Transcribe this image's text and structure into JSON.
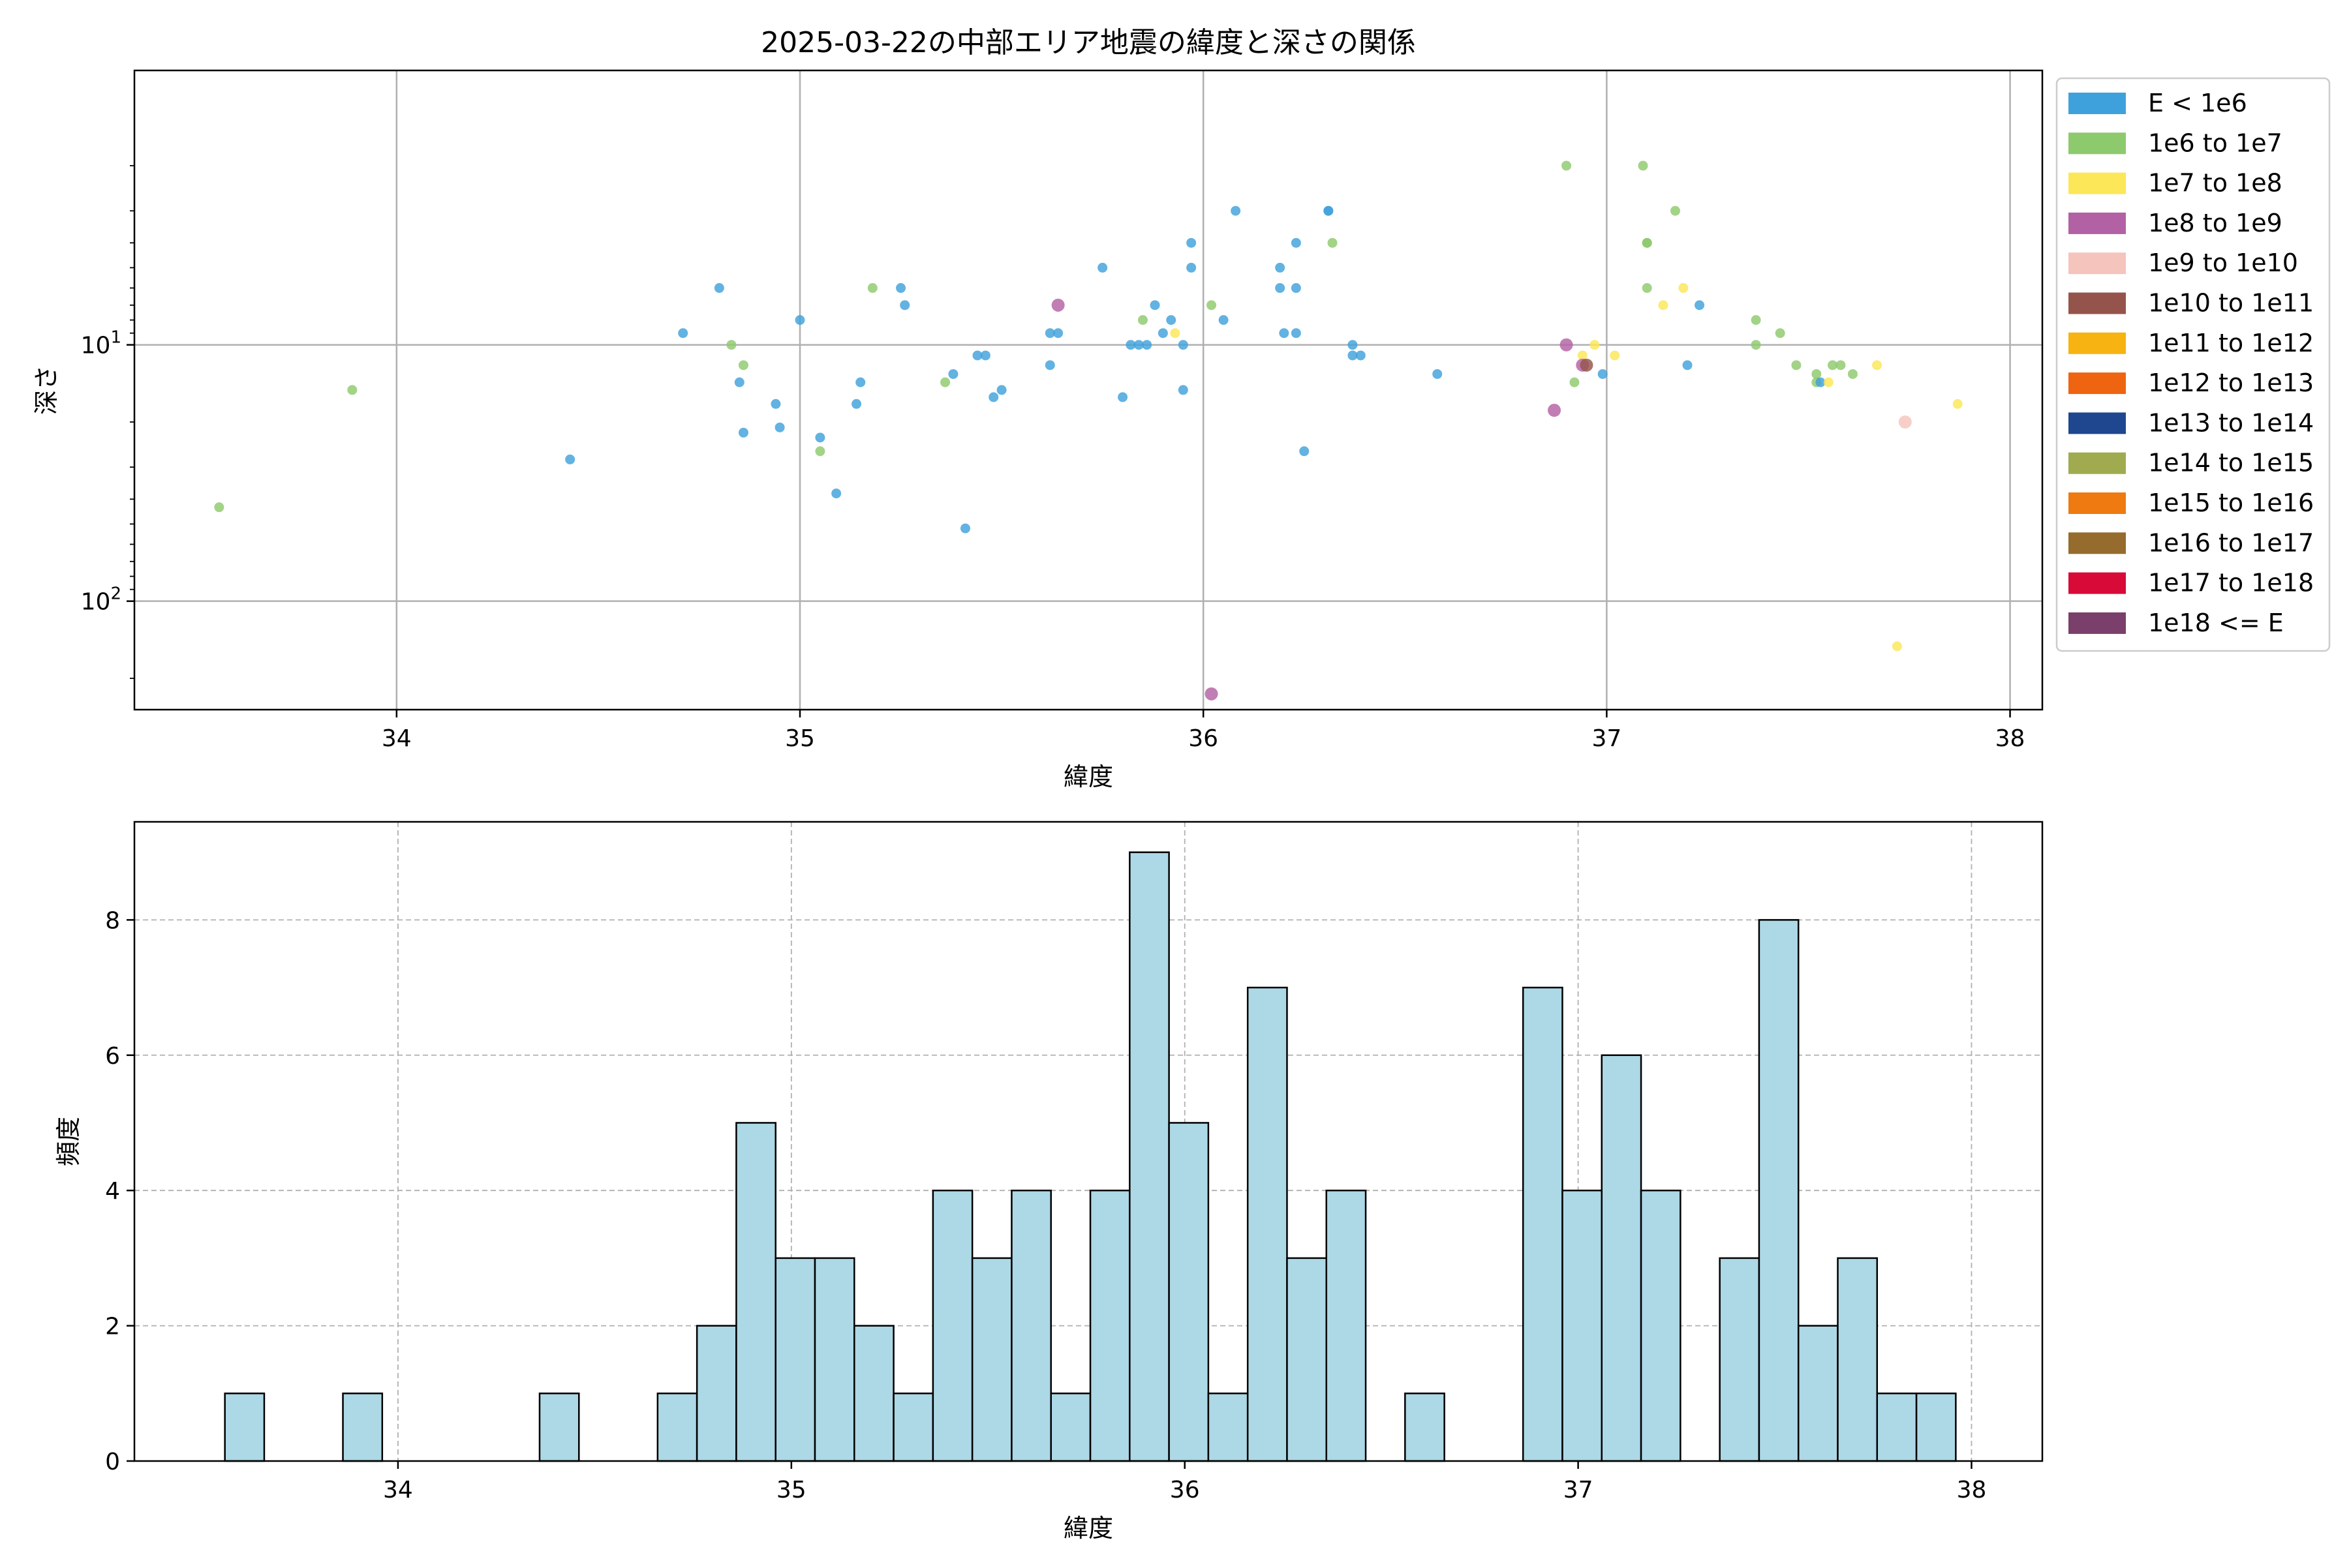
{
  "colors": {
    "hist_fill": "#add8e6",
    "hist_edge": "#000000",
    "grid": "#b0b0b0",
    "energy_classes": [
      "#3fa1dc",
      "#8dc96d",
      "#fbe757",
      "#b261a4",
      "#f5c4bd",
      "#95544b",
      "#f6b311",
      "#ee6410",
      "#1e4790",
      "#9fab4e",
      "#ee7a11",
      "#956b2e",
      "#d80b38",
      "#7a3f6b"
    ]
  },
  "chart_data": [
    {
      "type": "scatter",
      "title": "2025-03-22の中部エリア地震の緯度と深さの関係",
      "xlabel": "緯度",
      "ylabel": "深さ",
      "xlim": [
        33.35,
        38.08
      ],
      "ylim": [
        265,
        0.85
      ],
      "yscale": "log",
      "y_inverted": true,
      "grid": true,
      "xticks": [
        34,
        35,
        36,
        37,
        38
      ],
      "yticks": [
        {
          "value": 10,
          "base": "10",
          "exp": "1"
        },
        {
          "value": 100,
          "base": "10",
          "exp": "2"
        }
      ],
      "legend": {
        "position": "right-outside",
        "entries": [
          "E < 1e6",
          "1e6 to 1e7",
          "1e7 to 1e8",
          "1e8 to 1e9",
          "1e9 to 1e10",
          "1e10 to 1e11",
          "1e11 to 1e12",
          "1e12 to 1e13",
          "1e13 to 1e14",
          "1e14 to 1e15",
          "1e15 to 1e16",
          "1e16 to 1e17",
          "1e17 to 1e18",
          "1e18 <= E"
        ]
      },
      "points": [
        {
          "x": 33.56,
          "y": 43,
          "c": 1
        },
        {
          "x": 33.89,
          "y": 15,
          "c": 1
        },
        {
          "x": 34.43,
          "y": 28,
          "c": 0
        },
        {
          "x": 34.71,
          "y": 9,
          "c": 0
        },
        {
          "x": 34.8,
          "y": 6,
          "c": 0
        },
        {
          "x": 34.83,
          "y": 10,
          "c": 1
        },
        {
          "x": 34.85,
          "y": 14,
          "c": 0
        },
        {
          "x": 34.86,
          "y": 22,
          "c": 0
        },
        {
          "x": 34.86,
          "y": 12,
          "c": 1
        },
        {
          "x": 34.94,
          "y": 17,
          "c": 0
        },
        {
          "x": 34.95,
          "y": 21,
          "c": 0
        },
        {
          "x": 35.0,
          "y": 8,
          "c": 0
        },
        {
          "x": 35.05,
          "y": 23,
          "c": 0
        },
        {
          "x": 35.05,
          "y": 26,
          "c": 1
        },
        {
          "x": 35.09,
          "y": 38,
          "c": 0
        },
        {
          "x": 35.14,
          "y": 17,
          "c": 0
        },
        {
          "x": 35.15,
          "y": 14,
          "c": 0
        },
        {
          "x": 35.18,
          "y": 6,
          "c": 1
        },
        {
          "x": 35.25,
          "y": 6,
          "c": 0
        },
        {
          "x": 35.26,
          "y": 7,
          "c": 0
        },
        {
          "x": 35.36,
          "y": 14,
          "c": 1
        },
        {
          "x": 35.38,
          "y": 13,
          "c": 0
        },
        {
          "x": 35.41,
          "y": 52,
          "c": 0
        },
        {
          "x": 35.44,
          "y": 11,
          "c": 0
        },
        {
          "x": 35.46,
          "y": 11,
          "c": 0
        },
        {
          "x": 35.48,
          "y": 16,
          "c": 0
        },
        {
          "x": 35.5,
          "y": 15,
          "c": 0
        },
        {
          "x": 35.62,
          "y": 12,
          "c": 0
        },
        {
          "x": 35.62,
          "y": 9,
          "c": 0
        },
        {
          "x": 35.64,
          "y": 9,
          "c": 0
        },
        {
          "x": 35.64,
          "y": 7,
          "c": 3
        },
        {
          "x": 35.75,
          "y": 5,
          "c": 0
        },
        {
          "x": 35.8,
          "y": 16,
          "c": 0
        },
        {
          "x": 35.82,
          "y": 10,
          "c": 0
        },
        {
          "x": 35.84,
          "y": 10,
          "c": 0
        },
        {
          "x": 35.85,
          "y": 8,
          "c": 1
        },
        {
          "x": 35.86,
          "y": 10,
          "c": 0
        },
        {
          "x": 35.88,
          "y": 7,
          "c": 0
        },
        {
          "x": 35.9,
          "y": 9,
          "c": 0
        },
        {
          "x": 35.92,
          "y": 8,
          "c": 0
        },
        {
          "x": 35.93,
          "y": 9,
          "c": 2
        },
        {
          "x": 35.95,
          "y": 10,
          "c": 0
        },
        {
          "x": 35.95,
          "y": 15,
          "c": 0
        },
        {
          "x": 35.97,
          "y": 4,
          "c": 0
        },
        {
          "x": 35.97,
          "y": 5,
          "c": 0
        },
        {
          "x": 36.02,
          "y": 7,
          "c": 1
        },
        {
          "x": 36.02,
          "y": 230,
          "c": 3
        },
        {
          "x": 36.05,
          "y": 8,
          "c": 0
        },
        {
          "x": 36.08,
          "y": 3,
          "c": 0
        },
        {
          "x": 36.19,
          "y": 5,
          "c": 0
        },
        {
          "x": 36.19,
          "y": 6,
          "c": 0
        },
        {
          "x": 36.2,
          "y": 9,
          "c": 0
        },
        {
          "x": 36.23,
          "y": 4,
          "c": 0
        },
        {
          "x": 36.23,
          "y": 6,
          "c": 0
        },
        {
          "x": 36.23,
          "y": 9,
          "c": 0
        },
        {
          "x": 36.25,
          "y": 26,
          "c": 0
        },
        {
          "x": 36.31,
          "y": 3,
          "c": 0
        },
        {
          "x": 36.31,
          "y": 3,
          "c": 0
        },
        {
          "x": 36.32,
          "y": 4,
          "c": 1
        },
        {
          "x": 36.37,
          "y": 10,
          "c": 0
        },
        {
          "x": 36.37,
          "y": 11,
          "c": 0
        },
        {
          "x": 36.39,
          "y": 11,
          "c": 0
        },
        {
          "x": 36.58,
          "y": 13,
          "c": 0
        },
        {
          "x": 36.87,
          "y": 18,
          "c": 3
        },
        {
          "x": 36.9,
          "y": 10,
          "c": 3
        },
        {
          "x": 36.9,
          "y": 2,
          "c": 1
        },
        {
          "x": 36.92,
          "y": 14,
          "c": 1
        },
        {
          "x": 36.94,
          "y": 11,
          "c": 2
        },
        {
          "x": 36.94,
          "y": 12,
          "c": 3
        },
        {
          "x": 36.95,
          "y": 12,
          "c": 5
        },
        {
          "x": 36.97,
          "y": 10,
          "c": 2
        },
        {
          "x": 36.99,
          "y": 13,
          "c": 0
        },
        {
          "x": 37.02,
          "y": 11,
          "c": 2
        },
        {
          "x": 37.09,
          "y": 2,
          "c": 1
        },
        {
          "x": 37.1,
          "y": 4,
          "c": 1
        },
        {
          "x": 37.1,
          "y": 4,
          "c": 1
        },
        {
          "x": 37.1,
          "y": 6,
          "c": 1
        },
        {
          "x": 37.14,
          "y": 7,
          "c": 2
        },
        {
          "x": 37.17,
          "y": 3,
          "c": 1
        },
        {
          "x": 37.19,
          "y": 6,
          "c": 2
        },
        {
          "x": 37.2,
          "y": 12,
          "c": 0
        },
        {
          "x": 37.23,
          "y": 7,
          "c": 0
        },
        {
          "x": 37.37,
          "y": 8,
          "c": 1
        },
        {
          "x": 37.37,
          "y": 10,
          "c": 1
        },
        {
          "x": 37.43,
          "y": 9,
          "c": 1
        },
        {
          "x": 37.47,
          "y": 12,
          "c": 1
        },
        {
          "x": 37.52,
          "y": 13,
          "c": 1
        },
        {
          "x": 37.52,
          "y": 14,
          "c": 1
        },
        {
          "x": 37.53,
          "y": 14,
          "c": 0
        },
        {
          "x": 37.55,
          "y": 14,
          "c": 2
        },
        {
          "x": 37.56,
          "y": 12,
          "c": 1
        },
        {
          "x": 37.58,
          "y": 12,
          "c": 1
        },
        {
          "x": 37.61,
          "y": 13,
          "c": 1
        },
        {
          "x": 37.67,
          "y": 12,
          "c": 2
        },
        {
          "x": 37.72,
          "y": 150,
          "c": 2
        },
        {
          "x": 37.74,
          "y": 20,
          "c": 4
        },
        {
          "x": 37.87,
          "y": 17,
          "c": 2
        }
      ]
    },
    {
      "type": "bar",
      "subtype": "histogram",
      "xlabel": "緯度",
      "ylabel": "頻度",
      "xlim": [
        33.33,
        38.18
      ],
      "ylim": [
        0,
        9.45
      ],
      "grid": true,
      "xticks": [
        34,
        35,
        36,
        37,
        38
      ],
      "yticks": [
        0,
        2,
        4,
        6,
        8
      ],
      "bin_start": 33.56,
      "bin_width": 0.1,
      "values": [
        1,
        0,
        0,
        1,
        0,
        0,
        0,
        0,
        1,
        0,
        0,
        1,
        2,
        5,
        3,
        3,
        2,
        1,
        4,
        3,
        4,
        1,
        4,
        9,
        5,
        1,
        7,
        3,
        4,
        0,
        1,
        0,
        0,
        7,
        4,
        6,
        4,
        0,
        3,
        8,
        2,
        3,
        1,
        1
      ]
    }
  ]
}
